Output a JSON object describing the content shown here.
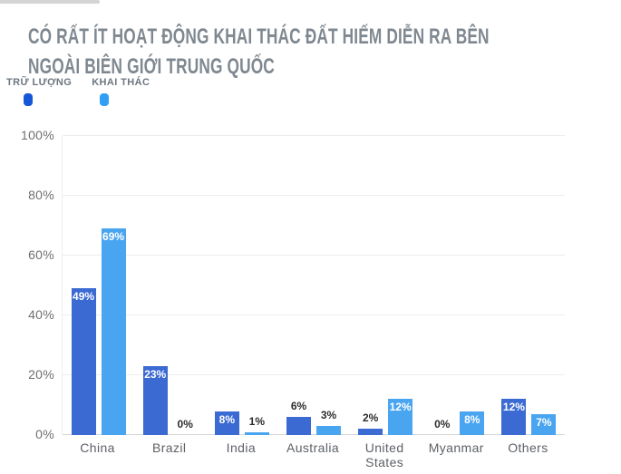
{
  "header": {
    "title": "CÓ RẤT ÍT HOẠT ĐỘNG KHAI THÁC ĐẤT HIẾM DIỄN RA BÊN NGOÀI BIÊN GIỚI TRUNG QUỐC",
    "title_line1": "CÓ RẤT ÍT HOẠT ĐỘNG KHAI THÁC ĐẤT HIẾM DIỄN RA BÊN",
    "title_line2": "NGOÀI BIÊN GIỚI TRUNG QUỐC",
    "title_color": "#7f8890"
  },
  "legend": {
    "items": [
      {
        "label": "TRỮ LƯỢNG",
        "color": "#1557d6"
      },
      {
        "label": "KHAI THÁC",
        "color": "#2f9ef4"
      }
    ]
  },
  "chart_data": {
    "type": "bar",
    "title": "CÓ RẤT ÍT HOẠT ĐỘNG KHAI THÁC ĐẤT HIẾM DIỄN RA BÊN NGOÀI BIÊN GIỚI TRUNG QUỐC",
    "categories": [
      "China",
      "Brazil",
      "India",
      "Australia",
      "United States",
      "Myanmar",
      "Others"
    ],
    "series": [
      {
        "name": "TRỮ LƯỢNG",
        "color": "#3b6ad3",
        "values": [
          49,
          23,
          8,
          6,
          2,
          0,
          12
        ]
      },
      {
        "name": "KHAI THÁC",
        "color": "#4aa5f0",
        "values": [
          69,
          0,
          1,
          3,
          12,
          8,
          7
        ]
      }
    ],
    "value_labels": [
      [
        "49%",
        "23%",
        "8%",
        "6%",
        "2%",
        "0%",
        "12%"
      ],
      [
        "69%",
        "0%",
        "1%",
        "3%",
        "12%",
        "8%",
        "7%"
      ]
    ],
    "xlabel": "",
    "ylabel": "",
    "ylim": [
      0,
      100
    ],
    "yticks": [
      "0%",
      "20%",
      "40%",
      "60%",
      "80%",
      "100%"
    ],
    "grid": true,
    "legend_position": "top-left",
    "value_label_inside_min": 7
  }
}
